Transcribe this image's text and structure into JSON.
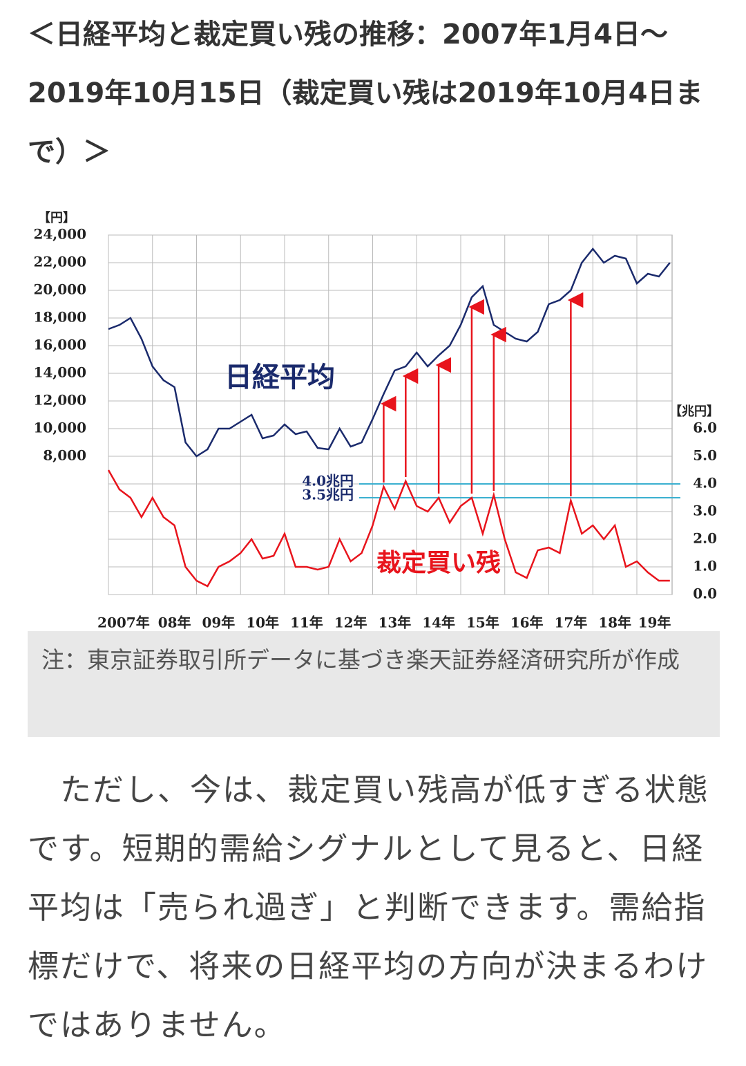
{
  "header": {
    "title": "＜日経平均と裁定買い残の推移：2007年1月4日～2019年10月15日（裁定買い残は2019年10月4日まで）＞"
  },
  "chart_data": {
    "type": "line",
    "y_unit": "【円】",
    "y2_unit": "【兆円】",
    "x": [
      2007,
      2007.25,
      2007.5,
      2007.75,
      2008,
      2008.25,
      2008.5,
      2008.75,
      2009,
      2009.25,
      2009.5,
      2009.75,
      2010,
      2010.25,
      2010.5,
      2010.75,
      2011,
      2011.25,
      2011.5,
      2011.75,
      2012,
      2012.25,
      2012.5,
      2012.75,
      2013,
      2013.25,
      2013.5,
      2013.75,
      2014,
      2014.25,
      2014.5,
      2014.75,
      2015,
      2015.25,
      2015.5,
      2015.75,
      2016,
      2016.25,
      2016.5,
      2016.75,
      2017,
      2017.25,
      2017.5,
      2017.75,
      2018,
      2018.25,
      2018.5,
      2018.75,
      2019,
      2019.25,
      2019.5,
      2019.75
    ],
    "xlim": [
      2007,
      2019.8
    ],
    "xticks": [
      {
        "value": 2007,
        "label": "2007年"
      },
      {
        "value": 2008,
        "label": "08年"
      },
      {
        "value": 2009,
        "label": "09年"
      },
      {
        "value": 2010,
        "label": "10年"
      },
      {
        "value": 2011,
        "label": "11年"
      },
      {
        "value": 2012,
        "label": "12年"
      },
      {
        "value": 2013,
        "label": "13年"
      },
      {
        "value": 2014,
        "label": "14年"
      },
      {
        "value": 2015,
        "label": "15年"
      },
      {
        "value": 2016,
        "label": "16年"
      },
      {
        "value": 2017,
        "label": "17年"
      },
      {
        "value": 2018,
        "label": "18年"
      },
      {
        "value": 2019,
        "label": "19年"
      }
    ],
    "ylim": [
      -2000,
      24000
    ],
    "yticks": [
      {
        "value": 8000,
        "label": "8,000"
      },
      {
        "value": 10000,
        "label": "10,000"
      },
      {
        "value": 12000,
        "label": "12,000"
      },
      {
        "value": 14000,
        "label": "14,000"
      },
      {
        "value": 16000,
        "label": "16,000"
      },
      {
        "value": 18000,
        "label": "18,000"
      },
      {
        "value": 20000,
        "label": "20,000"
      },
      {
        "value": 22000,
        "label": "22,000"
      },
      {
        "value": 24000,
        "label": "24,000"
      }
    ],
    "y2lim": [
      0,
      13
    ],
    "y2ticks": [
      {
        "value": 0,
        "label": "0.0"
      },
      {
        "value": 1,
        "label": "1.0"
      },
      {
        "value": 2,
        "label": "2.0"
      },
      {
        "value": 3,
        "label": "3.0"
      },
      {
        "value": 4,
        "label": "4.0"
      },
      {
        "value": 5,
        "label": "5.0"
      },
      {
        "value": 6,
        "label": "6.0"
      }
    ],
    "grid": true,
    "series": [
      {
        "name": "日経平均",
        "color": "#1a2a6c",
        "values": [
          17200,
          17500,
          18000,
          16500,
          14500,
          13500,
          13000,
          9000,
          8000,
          8500,
          10000,
          10000,
          10500,
          11000,
          9300,
          9500,
          10300,
          9600,
          9800,
          8600,
          8500,
          10000,
          8700,
          9000,
          10700,
          12500,
          14200,
          14500,
          15500,
          14500,
          15300,
          16000,
          17500,
          19500,
          20300,
          17500,
          17000,
          16500,
          16300,
          17000,
          19000,
          19300,
          20000,
          22000,
          23000,
          22000,
          22500,
          22300,
          20500,
          21200,
          21000,
          22000
        ]
      },
      {
        "name": "裁定買い残",
        "color": "#e8141c",
        "axis": "y2",
        "values": [
          4.5,
          3.8,
          3.5,
          2.8,
          3.5,
          2.8,
          2.5,
          1.0,
          0.5,
          0.3,
          1.0,
          1.2,
          1.5,
          2.0,
          1.3,
          1.4,
          2.2,
          1.0,
          1.0,
          0.9,
          1.0,
          2.0,
          1.2,
          1.5,
          2.5,
          3.9,
          3.1,
          4.1,
          3.2,
          3.0,
          3.5,
          2.6,
          3.2,
          3.5,
          2.2,
          3.6,
          2.0,
          0.8,
          0.6,
          1.6,
          1.7,
          1.5,
          3.4,
          2.2,
          2.5,
          2.0,
          2.5,
          1.0,
          1.2,
          0.8,
          0.5,
          0.5
        ]
      }
    ],
    "hlines": [
      {
        "value": 4.0,
        "label": "4.0兆円"
      },
      {
        "value": 3.5,
        "label": "3.5兆円"
      }
    ],
    "hline_color": "#3ab0d0",
    "arrow_color": "#e8141c",
    "arrows": [
      2013.25,
      2013.75,
      2014.5,
      2015.25,
      2015.75,
      2017.5
    ]
  },
  "note": "注：東京証券取引所データに基づき楽天証券経済研究所が作成",
  "body": "　ただし、今は、裁定買い残高が低すぎる状態です。短期的需給シグナルとして見ると、日経平均は「売られ過ぎ」と判断できます。需給指標だけで、将来の日経平均の方向が決まるわけではありません。"
}
